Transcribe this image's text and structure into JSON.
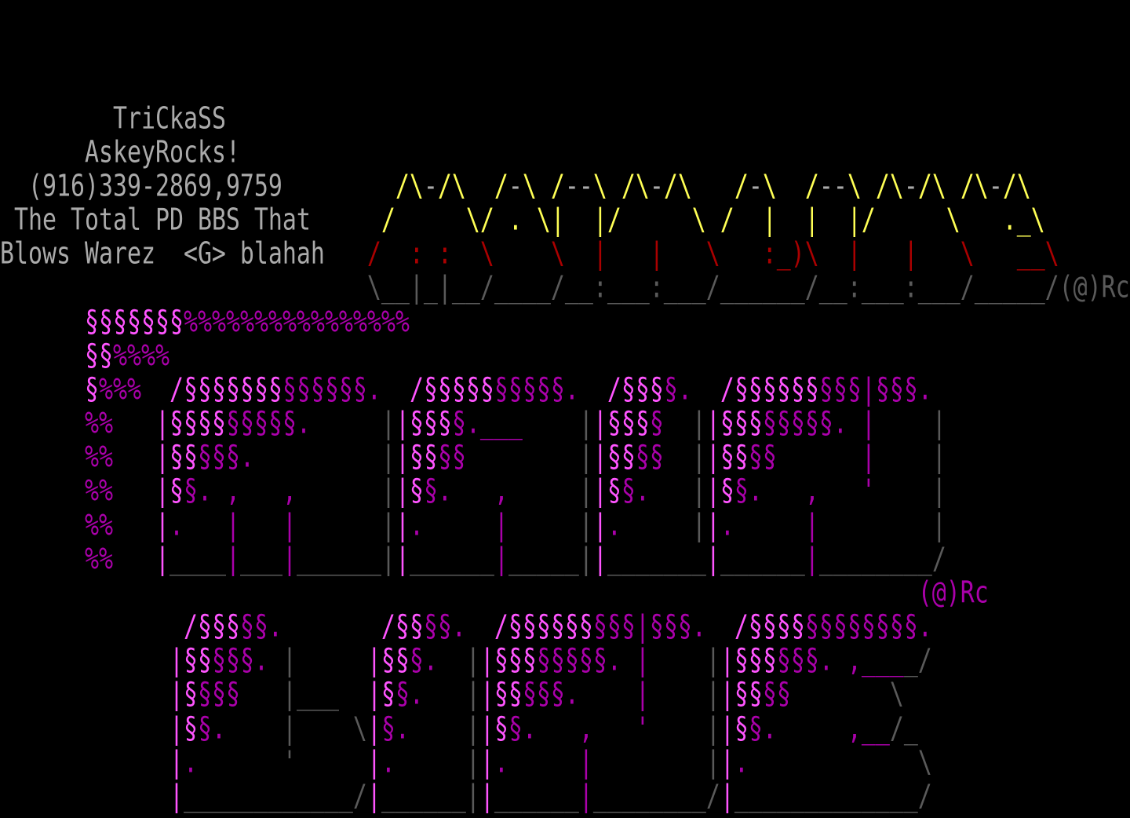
{
  "screen": {
    "title": "",
    "palette": {
      "w": "#aaaaaa",
      "y": "#ffff55",
      "r": "#aa0000",
      "k": "#5a5a5a",
      "M": "#ff55ff",
      "m": "#aa00aa"
    },
    "rows": [
      [],
      [],
      [],
      [
        [
          "        ",
          ""
        ],
        [
          "TriCkaSS",
          "w"
        ]
      ],
      [
        [
          "      ",
          ""
        ],
        [
          "AskeyRocks!",
          "w"
        ]
      ],
      [
        [
          "  ",
          ""
        ],
        [
          "(916)339-2869,9759",
          "w"
        ],
        [
          "        ",
          ""
        ],
        [
          "/\\",
          "y"
        ],
        [
          "-",
          "w"
        ],
        [
          "/\\",
          "y"
        ],
        [
          "  ",
          ""
        ],
        [
          "/",
          "y"
        ],
        [
          "-",
          "w"
        ],
        [
          "\\",
          "y"
        ],
        [
          " ",
          ""
        ],
        [
          "/",
          "y"
        ],
        [
          "--",
          "w"
        ],
        [
          "\\",
          "y"
        ],
        [
          " ",
          ""
        ],
        [
          "/\\",
          "y"
        ],
        [
          "-",
          "w"
        ],
        [
          "/\\",
          "y"
        ],
        [
          "   ",
          ""
        ],
        [
          "/",
          "y"
        ],
        [
          "-",
          "w"
        ],
        [
          "\\",
          "y"
        ],
        [
          "  ",
          ""
        ],
        [
          "/",
          "y"
        ],
        [
          "--",
          "w"
        ],
        [
          "\\",
          "y"
        ],
        [
          " ",
          ""
        ],
        [
          "/\\",
          "y"
        ],
        [
          "-",
          "w"
        ],
        [
          "/\\",
          "y"
        ],
        [
          " ",
          ""
        ],
        [
          "/\\",
          "y"
        ],
        [
          "-",
          "w"
        ],
        [
          "/\\",
          "y"
        ]
      ],
      [
        [
          " ",
          ""
        ],
        [
          "The Total PD BBS That",
          "w"
        ],
        [
          "     ",
          ""
        ],
        [
          "/     \\/ . \\|  |/     \\ /  |  |  |/     \\   ._\\",
          "y"
        ]
      ],
      [
        [
          "Blows Warez  <G> blahah",
          "w"
        ],
        [
          "   ",
          ""
        ],
        [
          "/  : :  \\    \\  |   |   \\   :_)\\  |   |   \\   __\\",
          "r"
        ]
      ],
      [
        [
          "                          ",
          ""
        ],
        [
          "\\__|_|__/____/__:___:___/______/__:___:___/_____/(@)Rc",
          "k"
        ]
      ],
      [
        [
          "      ",
          ""
        ],
        [
          "§§§§§§§",
          "M"
        ],
        [
          "%%%%%%%%%%%%%%%%",
          "m"
        ]
      ],
      [
        [
          "      ",
          ""
        ],
        [
          "§§",
          "M"
        ],
        [
          "%%%%",
          "m"
        ]
      ],
      [
        [
          "      ",
          ""
        ],
        [
          "§",
          "M"
        ],
        [
          "%%%",
          "m"
        ],
        [
          "  ",
          ""
        ],
        [
          "/§§§§§§§",
          "M"
        ],
        [
          "§§§§§§.",
          "m"
        ],
        [
          "  ",
          ""
        ],
        [
          "/§§§§§",
          "M"
        ],
        [
          "§§§§§.",
          "m"
        ],
        [
          "  ",
          ""
        ],
        [
          "/§§§",
          "M"
        ],
        [
          "§.",
          "m"
        ],
        [
          "  ",
          ""
        ],
        [
          "/§§§§§§",
          "M"
        ],
        [
          "§§§|§§§.",
          "m"
        ]
      ],
      [
        [
          "      ",
          ""
        ],
        [
          "%%",
          "m"
        ],
        [
          "   ",
          ""
        ],
        [
          "|",
          "M"
        ],
        [
          "§§§§",
          "M"
        ],
        [
          "§§§§§",
          "m"
        ],
        [
          ".",
          "m"
        ],
        [
          "     ",
          ""
        ],
        [
          "|",
          "k"
        ],
        [
          "|",
          "M"
        ],
        [
          "§§§",
          "M"
        ],
        [
          "§",
          "m"
        ],
        [
          ".___",
          "m"
        ],
        [
          "    ",
          ""
        ],
        [
          "|",
          "k"
        ],
        [
          "|",
          "M"
        ],
        [
          "§§§",
          "M"
        ],
        [
          "§",
          "m"
        ],
        [
          "  ",
          ""
        ],
        [
          "|",
          "k"
        ],
        [
          "|",
          "M"
        ],
        [
          "§§§",
          "M"
        ],
        [
          "§§§§§",
          "m"
        ],
        [
          ". |",
          "m"
        ],
        [
          "    ",
          ""
        ],
        [
          "|",
          "k"
        ]
      ],
      [
        [
          "      ",
          ""
        ],
        [
          "%%",
          "m"
        ],
        [
          "   ",
          ""
        ],
        [
          "|",
          "M"
        ],
        [
          "§§",
          "M"
        ],
        [
          "§§§",
          "m"
        ],
        [
          ".",
          "m"
        ],
        [
          "         ",
          ""
        ],
        [
          "|",
          "k"
        ],
        [
          "|",
          "M"
        ],
        [
          "§§",
          "M"
        ],
        [
          "§§",
          "m"
        ],
        [
          "        ",
          ""
        ],
        [
          "|",
          "k"
        ],
        [
          "|",
          "M"
        ],
        [
          "§§",
          "M"
        ],
        [
          "§§",
          "m"
        ],
        [
          "  ",
          ""
        ],
        [
          "|",
          "k"
        ],
        [
          "|",
          "M"
        ],
        [
          "§§",
          "M"
        ],
        [
          "§§",
          "m"
        ],
        [
          "      ",
          ""
        ],
        [
          "|",
          "m"
        ],
        [
          "    ",
          ""
        ],
        [
          "|",
          "k"
        ]
      ],
      [
        [
          "      ",
          ""
        ],
        [
          "%%",
          "m"
        ],
        [
          "   ",
          ""
        ],
        [
          "|§",
          "M"
        ],
        [
          "§. ,   ,",
          "m"
        ],
        [
          "      ",
          ""
        ],
        [
          "|",
          "k"
        ],
        [
          "|§",
          "M"
        ],
        [
          "§.   ,",
          "m"
        ],
        [
          "     ",
          ""
        ],
        [
          "|",
          "k"
        ],
        [
          "|§",
          "M"
        ],
        [
          "§.",
          "m"
        ],
        [
          "   ",
          ""
        ],
        [
          "|",
          "k"
        ],
        [
          "|§",
          "M"
        ],
        [
          "§.   ,   '",
          "m"
        ],
        [
          "    ",
          ""
        ],
        [
          "|",
          "k"
        ]
      ],
      [
        [
          "      ",
          ""
        ],
        [
          "%%",
          "m"
        ],
        [
          "   ",
          ""
        ],
        [
          "|",
          "M"
        ],
        [
          ".   |   |",
          "m"
        ],
        [
          "      ",
          ""
        ],
        [
          "|",
          "k"
        ],
        [
          "|",
          "M"
        ],
        [
          ".     |",
          "m"
        ],
        [
          "     ",
          ""
        ],
        [
          "|",
          "k"
        ],
        [
          "|",
          "M"
        ],
        [
          ".",
          "m"
        ],
        [
          "     ",
          ""
        ],
        [
          "|",
          "k"
        ],
        [
          "|",
          "M"
        ],
        [
          ".     |",
          "m"
        ],
        [
          "        ",
          ""
        ],
        [
          "|",
          "k"
        ]
      ],
      [
        [
          "      ",
          ""
        ],
        [
          "%%",
          "m"
        ],
        [
          "   ",
          ""
        ],
        [
          "|",
          "M"
        ],
        [
          "____",
          "k"
        ],
        [
          "|",
          "m"
        ],
        [
          "___",
          "k"
        ],
        [
          "|",
          "m"
        ],
        [
          "______|",
          "k"
        ],
        [
          "|",
          "M"
        ],
        [
          "______",
          "k"
        ],
        [
          "|",
          "m"
        ],
        [
          "_____|",
          "k"
        ],
        [
          "|",
          "M"
        ],
        [
          "_______",
          "k"
        ],
        [
          "|",
          "M"
        ],
        [
          "______",
          "k"
        ],
        [
          "|",
          "m"
        ],
        [
          "________/",
          "k"
        ]
      ],
      [
        [
          "                                                                 ",
          ""
        ],
        [
          "(@)Rc",
          "m"
        ]
      ],
      [
        [
          "             ",
          ""
        ],
        [
          "/§§§",
          "M"
        ],
        [
          "§§.",
          "m"
        ],
        [
          "       ",
          ""
        ],
        [
          "/§§",
          "M"
        ],
        [
          "§§.",
          "m"
        ],
        [
          "  ",
          ""
        ],
        [
          "/§§§§§§",
          "M"
        ],
        [
          "§§§|§§§.",
          "m"
        ],
        [
          "  ",
          ""
        ],
        [
          "/§§§§",
          "M"
        ],
        [
          "§§§§§§§§.",
          "m"
        ]
      ],
      [
        [
          "            ",
          ""
        ],
        [
          "|§§",
          "M"
        ],
        [
          "§§§.",
          "m"
        ],
        [
          " ",
          ""
        ],
        [
          "|",
          "k"
        ],
        [
          "     ",
          ""
        ],
        [
          "|§§",
          "M"
        ],
        [
          "§.",
          "m"
        ],
        [
          "  ",
          ""
        ],
        [
          "|",
          "k"
        ],
        [
          "|§§§",
          "M"
        ],
        [
          "§§§§§. |",
          "m"
        ],
        [
          "    ",
          ""
        ],
        [
          "|",
          "k"
        ],
        [
          "|§§§",
          "M"
        ],
        [
          "§§§. ,___",
          "m"
        ],
        [
          "_/",
          "k"
        ]
      ],
      [
        [
          "            ",
          ""
        ],
        [
          "|§",
          "M"
        ],
        [
          "§§§",
          "m"
        ],
        [
          "   ",
          ""
        ],
        [
          "|___",
          "k"
        ],
        [
          "  ",
          ""
        ],
        [
          "|§",
          "M"
        ],
        [
          "§.",
          "m"
        ],
        [
          "   ",
          ""
        ],
        [
          "|",
          "k"
        ],
        [
          "|§§",
          "M"
        ],
        [
          "§§§.    |",
          "m"
        ],
        [
          "    ",
          ""
        ],
        [
          "|",
          "k"
        ],
        [
          "|§§",
          "M"
        ],
        [
          "§§",
          "m"
        ],
        [
          "       ",
          ""
        ],
        [
          "\\",
          "k"
        ]
      ],
      [
        [
          "            ",
          ""
        ],
        [
          "|§",
          "M"
        ],
        [
          "§.",
          "m"
        ],
        [
          "    ",
          ""
        ],
        [
          "|    \\",
          "k"
        ],
        [
          "|",
          "M"
        ],
        [
          "§.",
          "m"
        ],
        [
          "    ",
          ""
        ],
        [
          "|",
          "k"
        ],
        [
          "|§",
          "M"
        ],
        [
          "§.   ,   '",
          "m"
        ],
        [
          "    ",
          ""
        ],
        [
          "|",
          "k"
        ],
        [
          "|§",
          "M"
        ],
        [
          "§.     ,__",
          "m"
        ],
        [
          "/_",
          "k"
        ]
      ],
      [
        [
          "            ",
          ""
        ],
        [
          "|",
          "M"
        ],
        [
          ".",
          "m"
        ],
        [
          "      ",
          ""
        ],
        [
          "'",
          "k"
        ],
        [
          "     ",
          ""
        ],
        [
          "|",
          "M"
        ],
        [
          ".",
          "m"
        ],
        [
          "     ",
          ""
        ],
        [
          "|",
          "k"
        ],
        [
          "|",
          "M"
        ],
        [
          ".     |",
          "m"
        ],
        [
          "        ",
          ""
        ],
        [
          "|",
          "k"
        ],
        [
          "|",
          "M"
        ],
        [
          ".",
          "m"
        ],
        [
          "            ",
          ""
        ],
        [
          "\\",
          "k"
        ]
      ],
      [
        [
          "            ",
          ""
        ],
        [
          "|",
          "M"
        ],
        [
          "____________/",
          "k"
        ],
        [
          "|",
          "M"
        ],
        [
          "______|",
          "k"
        ],
        [
          "|",
          "M"
        ],
        [
          "______",
          "k"
        ],
        [
          "|",
          "m"
        ],
        [
          "________/",
          "k"
        ],
        [
          "|",
          "M"
        ],
        [
          "_____________/",
          "k"
        ]
      ]
    ]
  }
}
